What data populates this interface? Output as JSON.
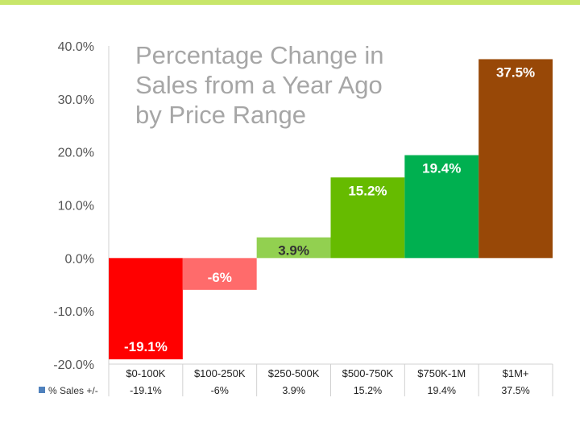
{
  "chart_data": {
    "type": "bar",
    "title": "Percentage Change in Sales from a Year Ago by Price Range",
    "categories": [
      "$0-100K",
      "$100-250K",
      "$250-500K",
      "$500-750K",
      "$750K-1M",
      "$1M+"
    ],
    "series": [
      {
        "name": "% Sales +/-",
        "values": [
          -19.1,
          -6,
          3.9,
          15.2,
          19.4,
          37.5
        ],
        "data_labels": [
          "-19.1%",
          "-6%",
          "3.9%",
          "15.2%",
          "19.4%",
          "37.5%"
        ],
        "table_labels": [
          "-19.1%",
          "-6%",
          "3.9%",
          "15.2%",
          "19.4%",
          "37.5%"
        ]
      }
    ],
    "bar_colors": [
      "#ff0000",
      "#ff6b6b",
      "#92d050",
      "#66bb00",
      "#00b050",
      "#984807"
    ],
    "label_colors": [
      "#ffffff",
      "#ffffff",
      "#333333",
      "#ffffff",
      "#ffffff",
      "#ffffff"
    ],
    "yticks": [
      "40.0%",
      "30.0%",
      "20.0%",
      "10.0%",
      "0.0%",
      "-10.0%",
      "-20.0%"
    ],
    "ylim": [
      -20,
      40
    ],
    "xlabel": "",
    "ylabel": "",
    "legend_position": "bottom-left data table",
    "legend_color": "#4f81bd",
    "grid": false
  }
}
